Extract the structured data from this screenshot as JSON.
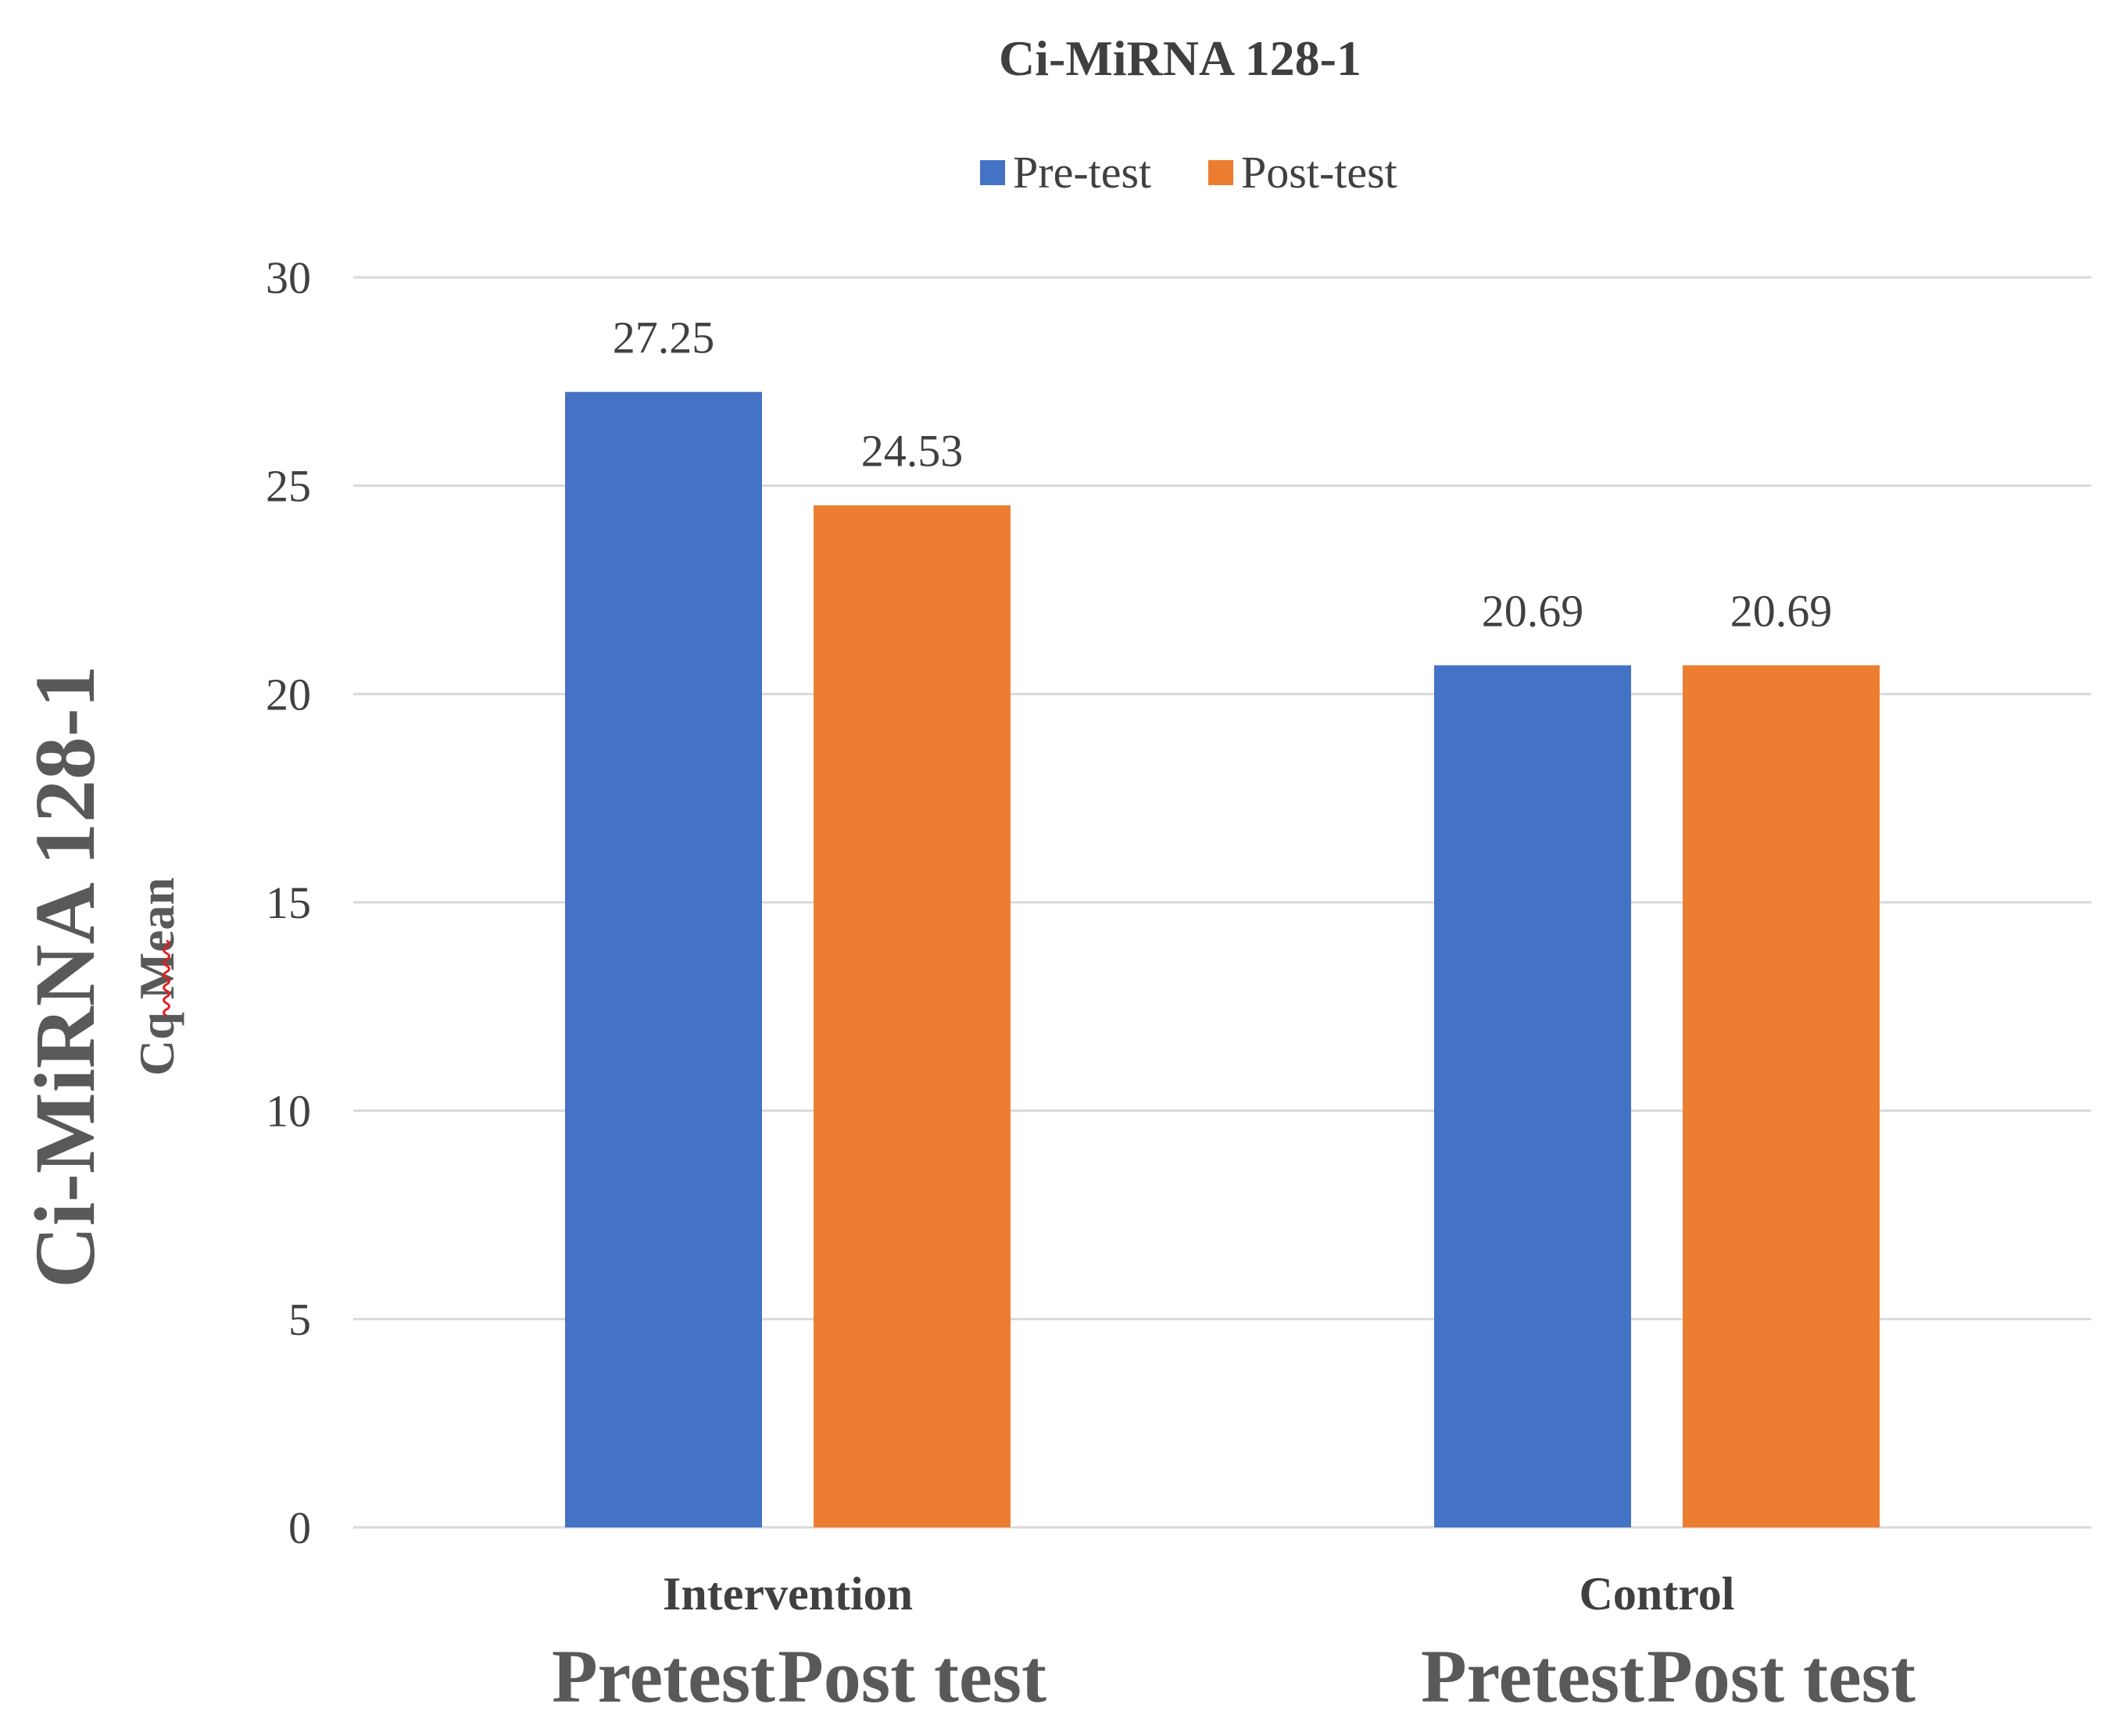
{
  "chart_data": {
    "type": "bar",
    "title": "Ci-MiRNA 128-1",
    "ylabel_main": "Ci-MiRNA 128-1",
    "ylabel_sub": "Cq Mean",
    "xlabel": "",
    "categories": [
      "Intervention",
      "Control"
    ],
    "category_sublabels": [
      [
        "Pretest",
        "Post test"
      ],
      [
        "Pretest",
        "Post test"
      ]
    ],
    "series": [
      {
        "name": "Pre-test",
        "values": [
          27.25,
          20.69
        ],
        "color": "#4472C4"
      },
      {
        "name": "Post-test",
        "values": [
          24.53,
          20.69
        ],
        "color": "#ED7D31"
      }
    ],
    "data_labels": [
      [
        "27.25",
        "20.69"
      ],
      [
        "24.53",
        "20.69"
      ]
    ],
    "ylim": [
      0,
      30
    ],
    "yticks": [
      0,
      5,
      10,
      15,
      20,
      25,
      30
    ],
    "grid": true,
    "legend_position": "top",
    "colors": {
      "gridline": "#d9d9d9",
      "text": "#404040",
      "title": "#3f3f3f",
      "squiggle": "#e02020"
    }
  }
}
